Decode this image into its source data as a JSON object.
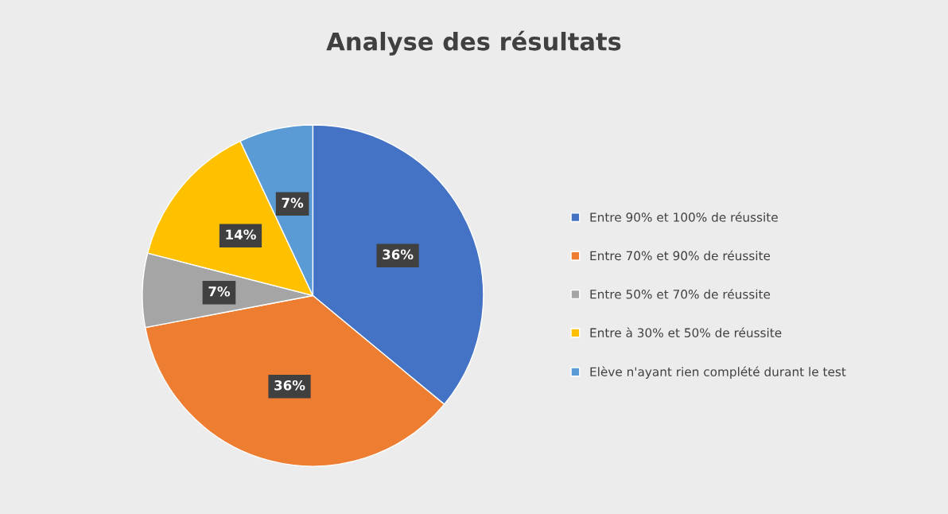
{
  "chart_data": {
    "type": "pie",
    "title": "Analyse des résultats",
    "categories": [
      "Entre 90% et 100% de réussite",
      "Entre 70% et 90% de réussite",
      "Entre 50% et 70% de réussite",
      "Entre à 30% et 50% de réussite",
      "Elève n'ayant rien complété durant le test"
    ],
    "values": [
      36,
      36,
      7,
      14,
      7
    ],
    "colors": [
      "#4472c4",
      "#ed7d31",
      "#a5a5a5",
      "#ffc000",
      "#5b9bd5"
    ],
    "value_labels": [
      "36%",
      "36%",
      "7%",
      "14%",
      "7%"
    ],
    "legend": "right"
  }
}
